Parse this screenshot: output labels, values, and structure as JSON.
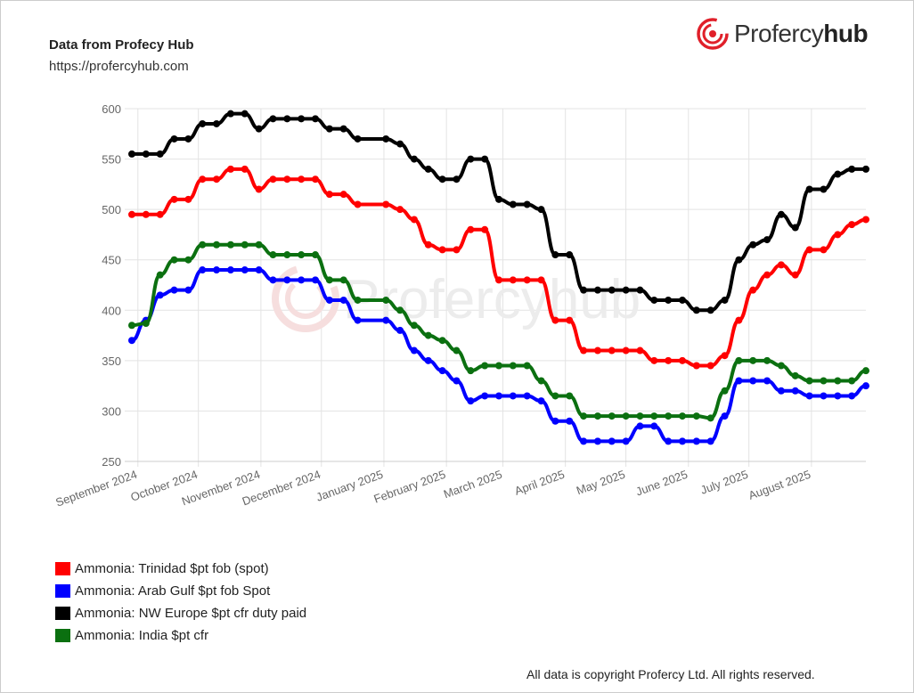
{
  "header": {
    "title": "Data from Profecy Hub",
    "url": "https://profercyhub.com"
  },
  "logo": {
    "text_light": "Profercy",
    "text_bold": "hub"
  },
  "watermark": "Profercyhub",
  "copyright": "All data is copyright Profercy Ltd. All rights reserved.",
  "chart_data": {
    "type": "line",
    "title": "",
    "xlabel": "",
    "ylabel": "",
    "ylim": [
      250,
      600
    ],
    "yticks": [
      250,
      300,
      350,
      400,
      450,
      500,
      550,
      600
    ],
    "xlim": [
      "2024-08-29",
      "2025-08-28"
    ],
    "xticks": [
      {
        "date": "2024-09-01",
        "label": "September 2024"
      },
      {
        "date": "2024-10-01",
        "label": "October 2024"
      },
      {
        "date": "2024-11-01",
        "label": "November 2024"
      },
      {
        "date": "2024-12-01",
        "label": "December 2024"
      },
      {
        "date": "2025-01-01",
        "label": "January 2025"
      },
      {
        "date": "2025-02-01",
        "label": "February 2025"
      },
      {
        "date": "2025-03-01",
        "label": "March 2025"
      },
      {
        "date": "2025-04-01",
        "label": "April 2025"
      },
      {
        "date": "2025-05-01",
        "label": "May 2025"
      },
      {
        "date": "2025-06-01",
        "label": "June 2025"
      },
      {
        "date": "2025-07-01",
        "label": "July 2025"
      },
      {
        "date": "2025-08-01",
        "label": "August 2025"
      }
    ],
    "grid": true,
    "legend_position": "bottom-left",
    "x": [
      "2024-08-29",
      "2024-09-05",
      "2024-09-12",
      "2024-09-19",
      "2024-09-26",
      "2024-10-03",
      "2024-10-10",
      "2024-10-17",
      "2024-10-24",
      "2024-10-31",
      "2024-11-07",
      "2024-11-14",
      "2024-11-21",
      "2024-11-28",
      "2024-12-05",
      "2024-12-12",
      "2024-12-19",
      "2025-01-02",
      "2025-01-09",
      "2025-01-16",
      "2025-01-23",
      "2025-01-30",
      "2025-02-06",
      "2025-02-13",
      "2025-02-20",
      "2025-02-27",
      "2025-03-06",
      "2025-03-13",
      "2025-03-20",
      "2025-03-27",
      "2025-04-03",
      "2025-04-10",
      "2025-04-17",
      "2025-04-24",
      "2025-05-01",
      "2025-05-08",
      "2025-05-15",
      "2025-05-22",
      "2025-05-29",
      "2025-06-05",
      "2025-06-12",
      "2025-06-19",
      "2025-06-26",
      "2025-07-03",
      "2025-07-10",
      "2025-07-17",
      "2025-07-24",
      "2025-07-31",
      "2025-08-07",
      "2025-08-14",
      "2025-08-21",
      "2025-08-28"
    ],
    "series": [
      {
        "name": "Ammonia: Trinidad $pt fob (spot)",
        "color": "#ff0000",
        "values": [
          495,
          495,
          495,
          510,
          510,
          530,
          530,
          540,
          540,
          520,
          530,
          530,
          530,
          530,
          515,
          515,
          505,
          505,
          500,
          490,
          465,
          460,
          460,
          480,
          480,
          430,
          430,
          430,
          430,
          390,
          390,
          360,
          360,
          360,
          360,
          360,
          350,
          350,
          350,
          345,
          345,
          355,
          390,
          420,
          435,
          445,
          435,
          460,
          460,
          475,
          485,
          490
        ]
      },
      {
        "name": "Ammonia: Arab Gulf $pt fob Spot",
        "color": "#0000ff",
        "values": [
          370,
          390,
          415,
          420,
          420,
          440,
          440,
          440,
          440,
          440,
          430,
          430,
          430,
          430,
          410,
          410,
          390,
          390,
          380,
          360,
          350,
          340,
          330,
          310,
          315,
          315,
          315,
          315,
          310,
          290,
          290,
          270,
          270,
          270,
          270,
          285,
          285,
          270,
          270,
          270,
          270,
          295,
          330,
          330,
          330,
          320,
          320,
          315,
          315,
          315,
          315,
          325
        ]
      },
      {
        "name": "Ammonia: NW Europe $pt cfr duty paid",
        "color": "#000000",
        "values": [
          555,
          555,
          555,
          570,
          570,
          585,
          585,
          595,
          595,
          580,
          590,
          590,
          590,
          590,
          580,
          580,
          570,
          570,
          565,
          550,
          540,
          530,
          530,
          550,
          550,
          510,
          505,
          505,
          500,
          455,
          455,
          420,
          420,
          420,
          420,
          420,
          410,
          410,
          410,
          400,
          400,
          410,
          450,
          465,
          470,
          495,
          482,
          520,
          520,
          535,
          540,
          540
        ]
      },
      {
        "name": "Ammonia: India $pt cfr",
        "color": "#0b7010",
        "values": [
          385,
          387,
          435,
          450,
          450,
          465,
          465,
          465,
          465,
          465,
          455,
          455,
          455,
          455,
          430,
          430,
          410,
          410,
          400,
          385,
          375,
          370,
          360,
          340,
          345,
          345,
          345,
          345,
          330,
          315,
          315,
          295,
          295,
          295,
          295,
          295,
          295,
          295,
          295,
          295,
          293,
          320,
          350,
          350,
          350,
          345,
          335,
          330,
          330,
          330,
          330,
          340
        ]
      }
    ]
  }
}
